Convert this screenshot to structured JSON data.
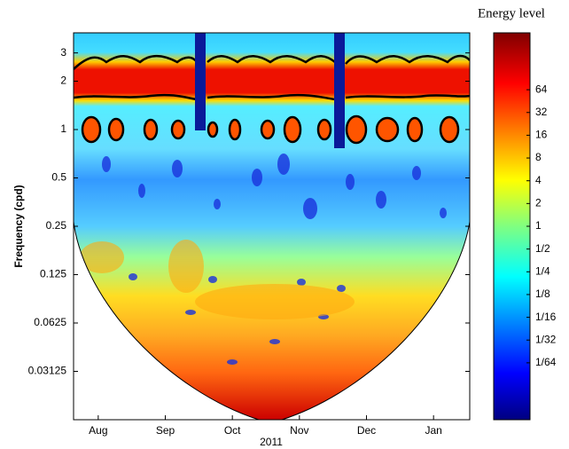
{
  "chart_data": {
    "type": "heatmap",
    "xlabel": "2011",
    "ylabel": "Frequency (cpd)",
    "categories": [
      "Aug",
      "Sep",
      "Oct",
      "Nov",
      "Dec",
      "Jan"
    ],
    "ylim": [
      0.015625,
      4
    ],
    "yticks": [
      3,
      2,
      1,
      0.5,
      0.25,
      0.125,
      0.0625,
      0.03125
    ],
    "ylog": true,
    "colorbar": {
      "title": "Energy level",
      "log": true,
      "lim": [
        0.0027621,
        362.04
      ],
      "ticks": [
        64,
        32,
        16,
        8,
        4,
        2,
        1,
        {
          "value": 0.5,
          "label": "1/2"
        },
        {
          "value": 0.25,
          "label": "1/4"
        },
        {
          "value": 0.125,
          "label": "1/8"
        },
        {
          "value": 0.0625,
          "label": "1/16"
        },
        {
          "value": 0.03125,
          "label": "1/32"
        },
        {
          "value": 0.015625,
          "label": "1/64"
        }
      ]
    }
  }
}
